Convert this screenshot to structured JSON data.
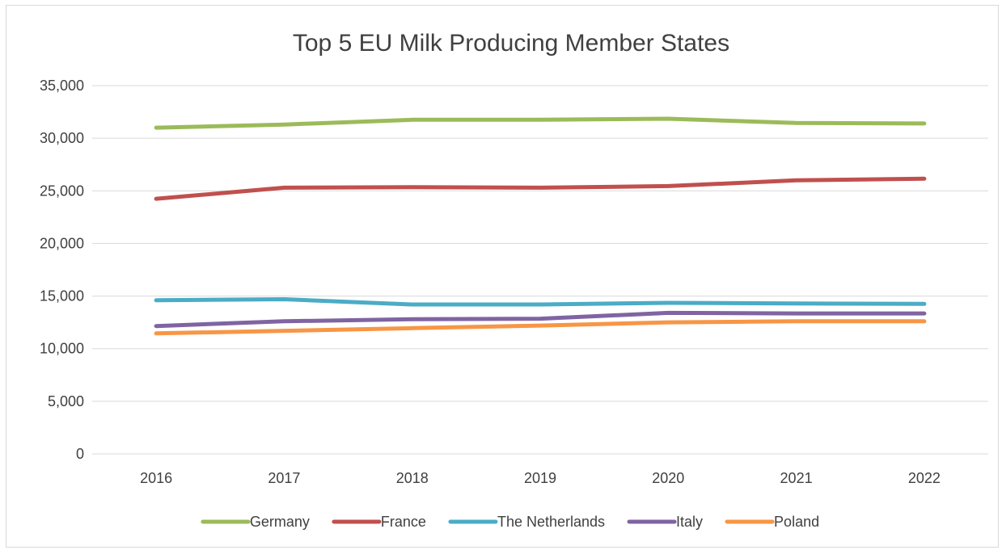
{
  "chart_data": {
    "type": "line",
    "title": "Top 5 EU Milk Producing Member States",
    "xlabel": "",
    "ylabel": "",
    "categories": [
      "2016",
      "2017",
      "2018",
      "2019",
      "2020",
      "2021",
      "2022"
    ],
    "ylim": [
      0,
      35000
    ],
    "yticks": [
      0,
      5000,
      10000,
      15000,
      20000,
      25000,
      30000,
      35000
    ],
    "ytick_labels": [
      "0",
      "5,000",
      "10,000",
      "15,000",
      "20,000",
      "25,000",
      "30,000",
      "35,000"
    ],
    "grid": true,
    "legend_position": "bottom",
    "series": [
      {
        "name": "Germany",
        "color": "#9bbb59",
        "values": [
          31000,
          31300,
          31750,
          31750,
          31850,
          31450,
          31400
        ]
      },
      {
        "name": "France",
        "color": "#c0504d",
        "values": [
          24250,
          25300,
          25350,
          25300,
          25450,
          26000,
          26150
        ]
      },
      {
        "name": "The Netherlands",
        "color": "#4bacc6",
        "values": [
          14600,
          14700,
          14200,
          14200,
          14350,
          14300,
          14250
        ]
      },
      {
        "name": "Italy",
        "color": "#8064a2",
        "values": [
          12150,
          12600,
          12800,
          12850,
          13400,
          13350,
          13350
        ]
      },
      {
        "name": "Poland",
        "color": "#f79646",
        "values": [
          11450,
          11700,
          11950,
          12200,
          12500,
          12600,
          12600
        ]
      }
    ]
  }
}
